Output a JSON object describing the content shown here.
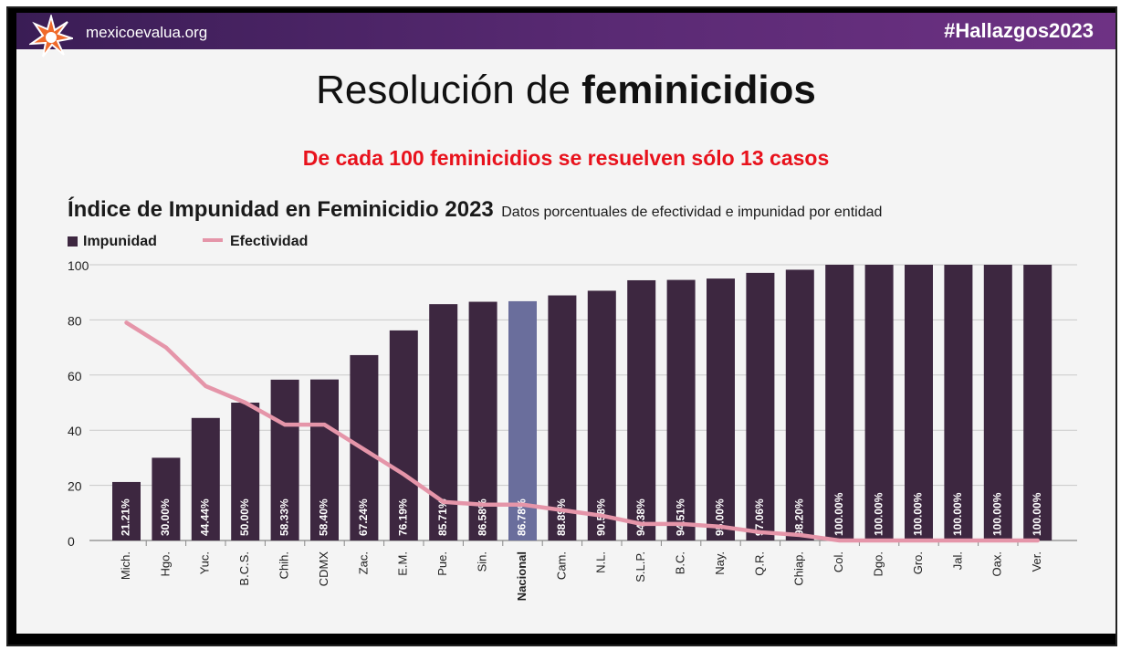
{
  "header": {
    "site": "mexicoevalua.org",
    "hashtag": "#Hallazgos2023",
    "banner_colors": [
      "#3a1d55",
      "#6e3284"
    ]
  },
  "title": {
    "normal": "Resolución de ",
    "bold": "feminicidios"
  },
  "subtitle": "De cada 100 feminicidios se resuelven sólo 13 casos",
  "chart_title": {
    "main": "Índice de Impunidad en Feminicidio 2023",
    "sub": "Datos porcentuales de efectividad e impunidad por entidad"
  },
  "legend": {
    "impunidad": "Impunidad",
    "efectividad": "Efectividad"
  },
  "chart_data": {
    "type": "bar",
    "categories": [
      "Mich.",
      "Hgo.",
      "Yuc.",
      "B.C.S.",
      "Chih.",
      "CDMX",
      "Zac.",
      "E.M.",
      "Pue.",
      "Sin.",
      "Nacional",
      "Cam.",
      "N.L.",
      "S.L.P.",
      "B.C.",
      "Nay.",
      "Q.R.",
      "Chiap.",
      "Col.",
      "Dgo.",
      "Gro.",
      "Jal.",
      "Oax.",
      "Ver."
    ],
    "highlight_category": "Nacional",
    "series": [
      {
        "name": "Impunidad",
        "type": "bar",
        "color": "#3d2740",
        "highlight_color": "#6a6e9c",
        "values": [
          21.21,
          30.0,
          44.44,
          50.0,
          58.33,
          58.4,
          67.24,
          76.19,
          85.71,
          86.58,
          86.78,
          88.89,
          90.58,
          94.38,
          94.51,
          95.0,
          97.06,
          98.2,
          100.0,
          100.0,
          100.0,
          100.0,
          100.0,
          100.0
        ],
        "labels": [
          "21.21%",
          "30.00%",
          "44.44%",
          "50.00%",
          "58.33%",
          "58.40%",
          "67.24%",
          "76.19%",
          "85.71%",
          "86.58%",
          "86.78%",
          "88.89%",
          "90.58%",
          "94.38%",
          "94.51%",
          "95.00%",
          "97.06%",
          "98.20%",
          "100.00%",
          "100.00%",
          "100.00%",
          "100.00%",
          "100.00%",
          "100.00%"
        ]
      },
      {
        "name": "Efectividad",
        "type": "line",
        "color": "#e595a9",
        "values": [
          79,
          70,
          56,
          50,
          42,
          42,
          33,
          24,
          14,
          13,
          13,
          11,
          9,
          6,
          6,
          5,
          3,
          2,
          0,
          0,
          0,
          0,
          0,
          0
        ]
      }
    ],
    "yticks": [
      0,
      20,
      40,
      60,
      80,
      100
    ],
    "ylim": [
      0,
      100
    ],
    "grid": true
  }
}
